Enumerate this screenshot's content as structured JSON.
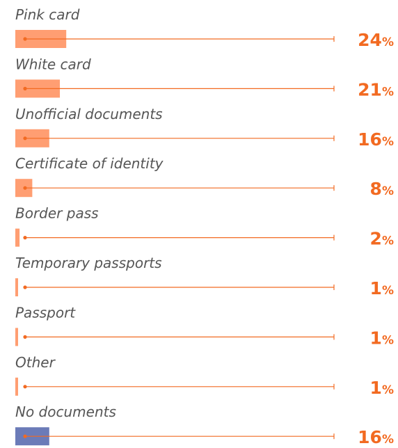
{
  "chart_data": {
    "type": "bar",
    "orientation": "horizontal",
    "categories": [
      "Pink card",
      "White card",
      "Unofficial documents",
      "Certificate of identity",
      "Border pass",
      "Temporary passports",
      "Passport",
      "Other",
      "No documents"
    ],
    "values": [
      24,
      21,
      16,
      8,
      2,
      1,
      1,
      1,
      16
    ],
    "value_suffix": "%",
    "xlim": [
      0,
      100
    ],
    "colors": {
      "bar": "#ff9e72",
      "highlight_bar": "#6b7bb8",
      "line": "#f26a21",
      "value_text": "#f26a21",
      "label_text": "#555555"
    },
    "highlight_category": "No documents"
  }
}
